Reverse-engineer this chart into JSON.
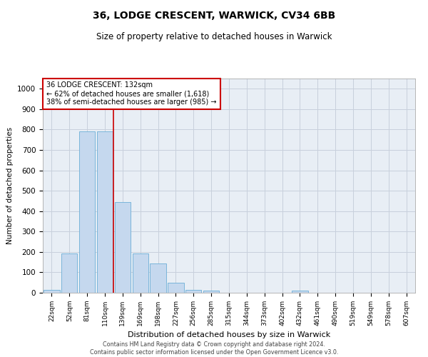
{
  "title": "36, LODGE CRESCENT, WARWICK, CV34 6BB",
  "subtitle": "Size of property relative to detached houses in Warwick",
  "xlabel": "Distribution of detached houses by size in Warwick",
  "ylabel": "Number of detached properties",
  "bar_labels": [
    "22sqm",
    "52sqm",
    "81sqm",
    "110sqm",
    "139sqm",
    "169sqm",
    "198sqm",
    "227sqm",
    "256sqm",
    "285sqm",
    "315sqm",
    "344sqm",
    "373sqm",
    "402sqm",
    "432sqm",
    "461sqm",
    "490sqm",
    "519sqm",
    "549sqm",
    "578sqm",
    "607sqm"
  ],
  "bar_values": [
    15,
    193,
    790,
    790,
    443,
    193,
    143,
    50,
    13,
    10,
    0,
    0,
    0,
    0,
    12,
    0,
    0,
    0,
    0,
    0,
    0
  ],
  "bar_color": "#c5d8ee",
  "bar_edge_color": "#6baed6",
  "vline_color": "#cc0000",
  "vline_x": 3.5,
  "annotation_title": "36 LODGE CRESCENT: 132sqm",
  "annotation_line1": "← 62% of detached houses are smaller (1,618)",
  "annotation_line2": "38% of semi-detached houses are larger (985) →",
  "annotation_box_color": "#ffffff",
  "annotation_box_edge_color": "#cc0000",
  "ylim": [
    0,
    1050
  ],
  "yticks": [
    0,
    100,
    200,
    300,
    400,
    500,
    600,
    700,
    800,
    900,
    1000
  ],
  "background_color": "#e8eef5",
  "grid_color": "#c8d0dc",
  "footer_line1": "Contains HM Land Registry data © Crown copyright and database right 2024.",
  "footer_line2": "Contains public sector information licensed under the Open Government Licence v3.0."
}
